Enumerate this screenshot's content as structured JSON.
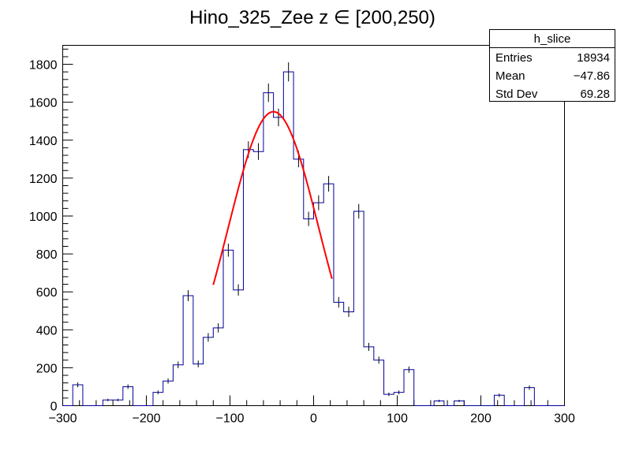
{
  "chart_data": {
    "type": "bar",
    "title": "Hino_325_Zee z  ∈ [200,250)",
    "xlabel": "",
    "ylabel": "",
    "xlim": [
      -300,
      300
    ],
    "ylim": [
      0,
      1900
    ],
    "x_ticks": [
      -300,
      -200,
      -100,
      0,
      100,
      200,
      300
    ],
    "y_ticks": [
      0,
      200,
      400,
      600,
      800,
      1000,
      1200,
      1400,
      1600,
      1800
    ],
    "bin_width": 12,
    "bin_start": -300,
    "values": [
      0,
      110,
      0,
      0,
      30,
      30,
      100,
      0,
      0,
      70,
      130,
      215,
      580,
      220,
      360,
      410,
      820,
      610,
      1350,
      1340,
      1650,
      1520,
      1760,
      1300,
      985,
      1070,
      1170,
      545,
      495,
      1025,
      310,
      240,
      60,
      70,
      190,
      0,
      0,
      25,
      0,
      25,
      0,
      0,
      0,
      55,
      0,
      0,
      95,
      0,
      0,
      0
    ],
    "errors_visible": true,
    "grid": false,
    "legend": "none",
    "colors": {
      "histogram": "#000099",
      "fit": "#ff0000",
      "axis": "#000000"
    },
    "fit": {
      "type": "gaussian",
      "x_range": [
        -120,
        22
      ],
      "amplitude": 1550,
      "mean": -48,
      "sigma": 54
    },
    "stats_box": {
      "name": "h_slice",
      "rows": [
        {
          "label": "Entries",
          "value": "18934"
        },
        {
          "label": "Mean",
          "value": "−47.86"
        },
        {
          "label": "Std Dev",
          "value": "69.28"
        }
      ]
    }
  }
}
